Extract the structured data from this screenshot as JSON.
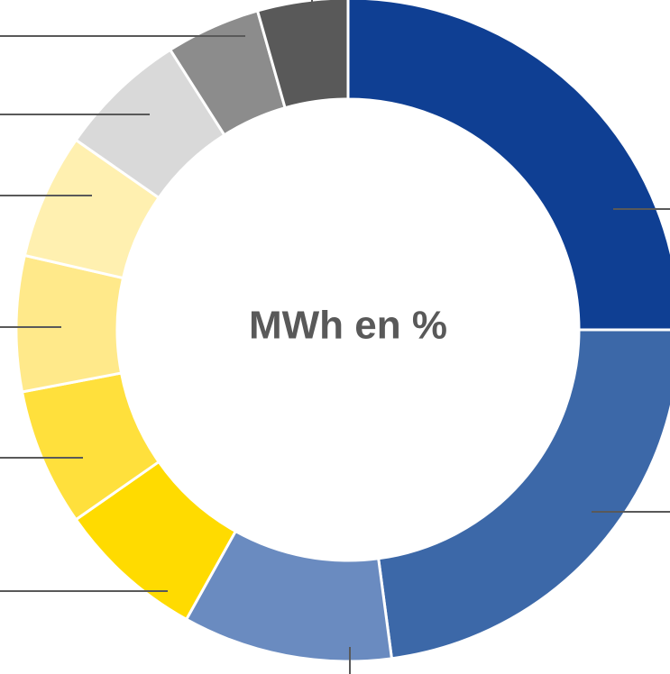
{
  "chart_data": {
    "type": "donut",
    "title": "MWh en %",
    "categories": [
      null,
      null,
      null,
      null,
      null,
      null,
      null,
      null,
      null,
      null
    ],
    "values": [
      25,
      22.9,
      10.2,
      7.2,
      6.7,
      6.6,
      6.1,
      6.3,
      4.6,
      4.4
    ],
    "colors": [
      "#0f3f93",
      "#3c68a8",
      "#6a8bc0",
      "#ffdb00",
      "#ffe03c",
      "#ffe98a",
      "#fff0b0",
      "#d9d9d9",
      "#8c8c8c",
      "#595959"
    ]
  }
}
